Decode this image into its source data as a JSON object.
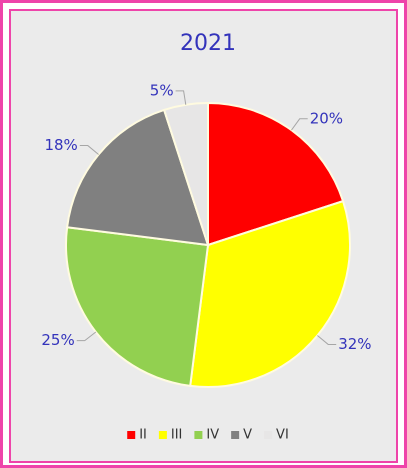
{
  "chart_data": {
    "type": "pie",
    "title": "2021",
    "categories": [
      "II",
      "III",
      "IV",
      "V",
      "VI"
    ],
    "values": [
      20,
      32,
      25,
      18,
      5
    ],
    "value_labels": [
      "20%",
      "32%",
      "25%",
      "18%",
      "5%"
    ],
    "colors": [
      "#ff0000",
      "#ffff00",
      "#92d050",
      "#808080",
      "#e7e6e6"
    ],
    "legend": "bottom"
  }
}
